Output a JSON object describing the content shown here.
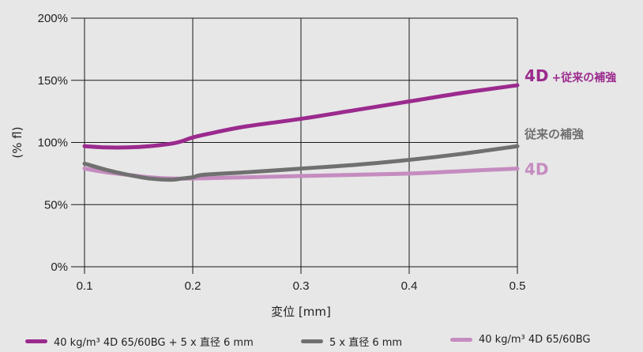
{
  "chart_data": {
    "type": "line",
    "xlabel": "変位 [mm]",
    "ylabel": "(% fl)",
    "xlim": [
      0.1,
      0.5
    ],
    "ylim": [
      0,
      200
    ],
    "x_ticks": [
      "0.1",
      "0.2",
      "0.3",
      "0.4",
      "0.5"
    ],
    "y_ticks": [
      "0%",
      "50%",
      "100%",
      "150%",
      "200%"
    ],
    "grid": "vertical and horizontal",
    "legend_position": "bottom",
    "series": [
      {
        "name": "40 kg/m³ 4D 65/60BG + 5 x 直径 6 mm",
        "color": "#9b2a8e",
        "x": [
          0.1,
          0.12,
          0.14,
          0.16,
          0.18,
          0.19,
          0.2,
          0.22,
          0.25,
          0.3,
          0.35,
          0.4,
          0.45,
          0.5
        ],
        "values": [
          97,
          96,
          96,
          97,
          99,
          101,
          104,
          108,
          113,
          119,
          126,
          133,
          140,
          146
        ]
      },
      {
        "name": "5 x 直径 6 mm",
        "color": "#707070",
        "x": [
          0.1,
          0.12,
          0.14,
          0.16,
          0.18,
          0.19,
          0.2,
          0.21,
          0.25,
          0.3,
          0.35,
          0.4,
          0.45,
          0.5
        ],
        "values": [
          83,
          78,
          74,
          71,
          70,
          71,
          72,
          74,
          76,
          79,
          82,
          86,
          91,
          97
        ]
      },
      {
        "name": "40 kg/m³ 4D 65/60BG",
        "color": "#c58cc0",
        "x": [
          0.1,
          0.12,
          0.14,
          0.16,
          0.18,
          0.2,
          0.25,
          0.3,
          0.35,
          0.4,
          0.45,
          0.5
        ],
        "values": [
          79,
          76,
          74,
          72,
          71,
          71,
          72,
          73,
          74,
          75,
          77,
          79
        ]
      }
    ],
    "annotations": [
      {
        "main": "4D",
        "suffix": "+従来の補強",
        "series_index": 0
      },
      {
        "main": "従来の補強",
        "suffix": "",
        "series_index": 1
      },
      {
        "main": "4D",
        "suffix": "",
        "series_index": 2
      }
    ]
  }
}
